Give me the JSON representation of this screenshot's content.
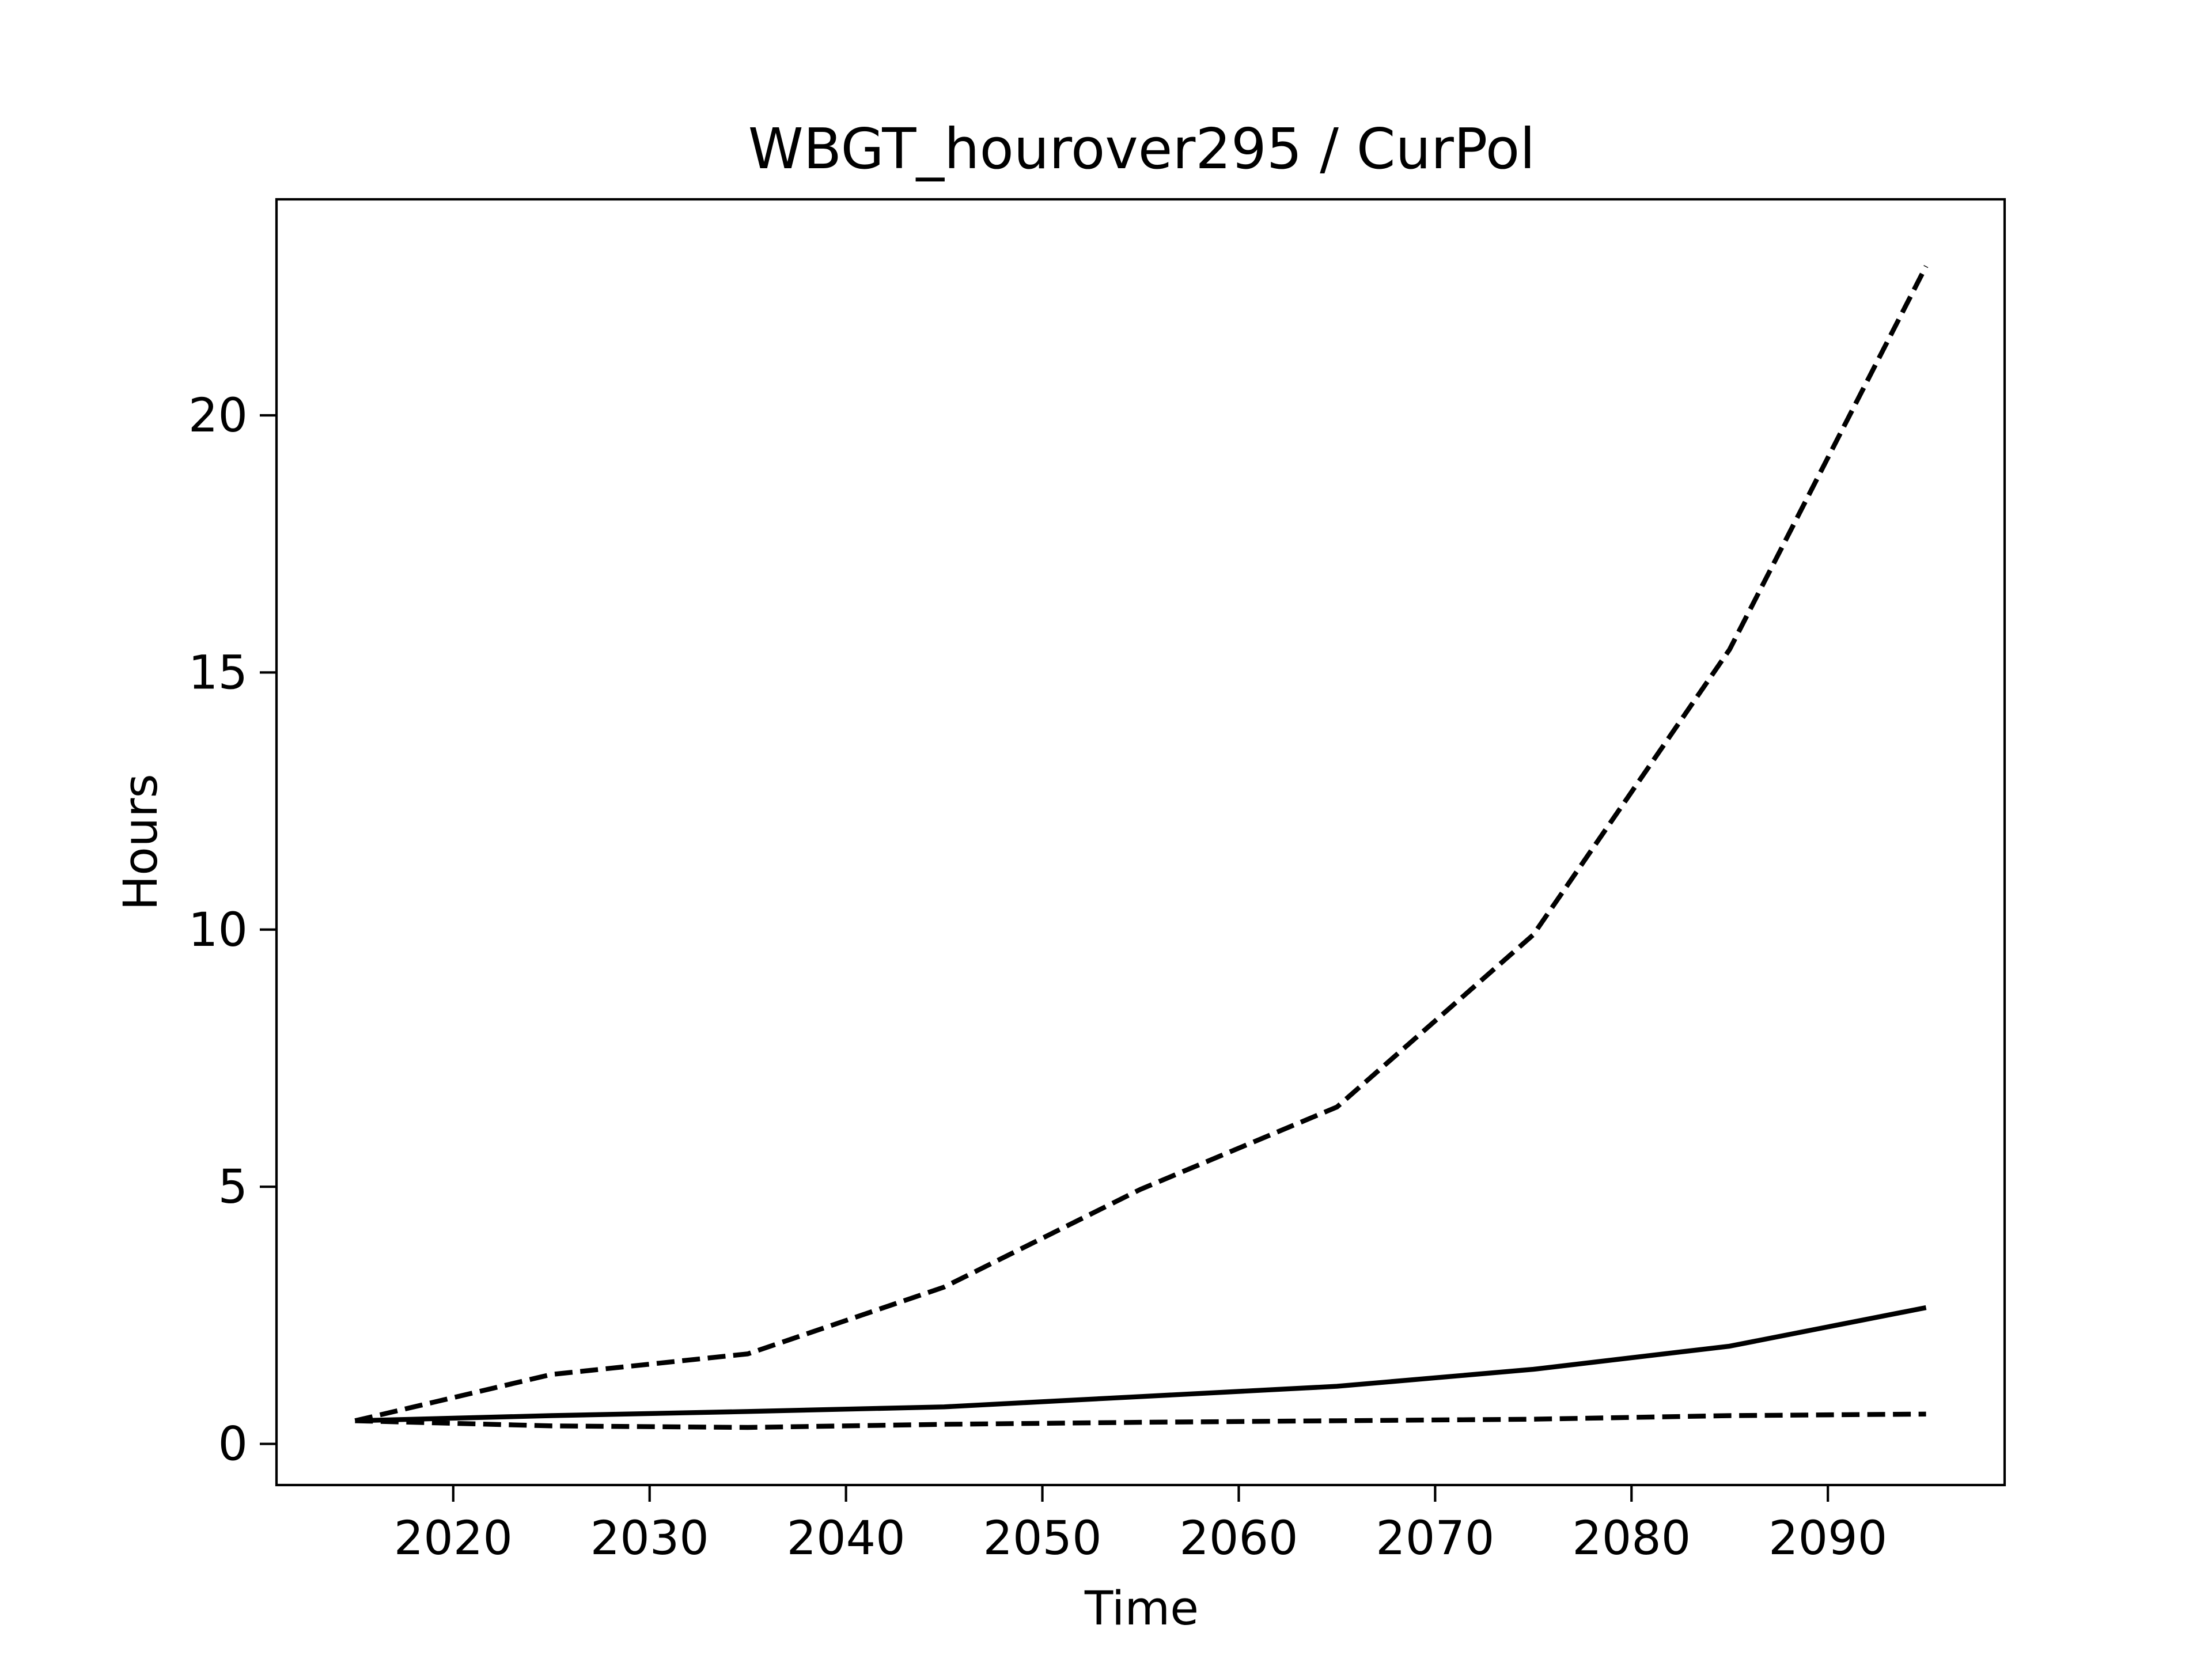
{
  "chart_data": {
    "type": "line",
    "title": "WBGT_hourover295 / CurPol",
    "xlabel": "Time",
    "ylabel": "Hours",
    "xlim": [
      2011,
      2099
    ],
    "ylim": [
      -0.8,
      24.2
    ],
    "xticks": [
      2020,
      2030,
      2040,
      2050,
      2060,
      2070,
      2080,
      2090
    ],
    "yticks": [
      0,
      5,
      10,
      15,
      20
    ],
    "grid": false,
    "legend": "none",
    "line_color": "#000000",
    "x": [
      2015,
      2025,
      2035,
      2045,
      2055,
      2065,
      2075,
      2085,
      2095
    ],
    "series": [
      {
        "style": "dashed",
        "values": [
          0.45,
          1.35,
          1.75,
          3.05,
          4.95,
          6.55,
          9.9,
          15.45,
          22.9
        ]
      },
      {
        "style": "solid",
        "values": [
          0.45,
          0.55,
          0.63,
          0.72,
          0.92,
          1.12,
          1.45,
          1.9,
          2.65
        ]
      },
      {
        "style": "dashed",
        "values": [
          0.45,
          0.35,
          0.32,
          0.38,
          0.42,
          0.45,
          0.48,
          0.55,
          0.58
        ]
      }
    ]
  }
}
